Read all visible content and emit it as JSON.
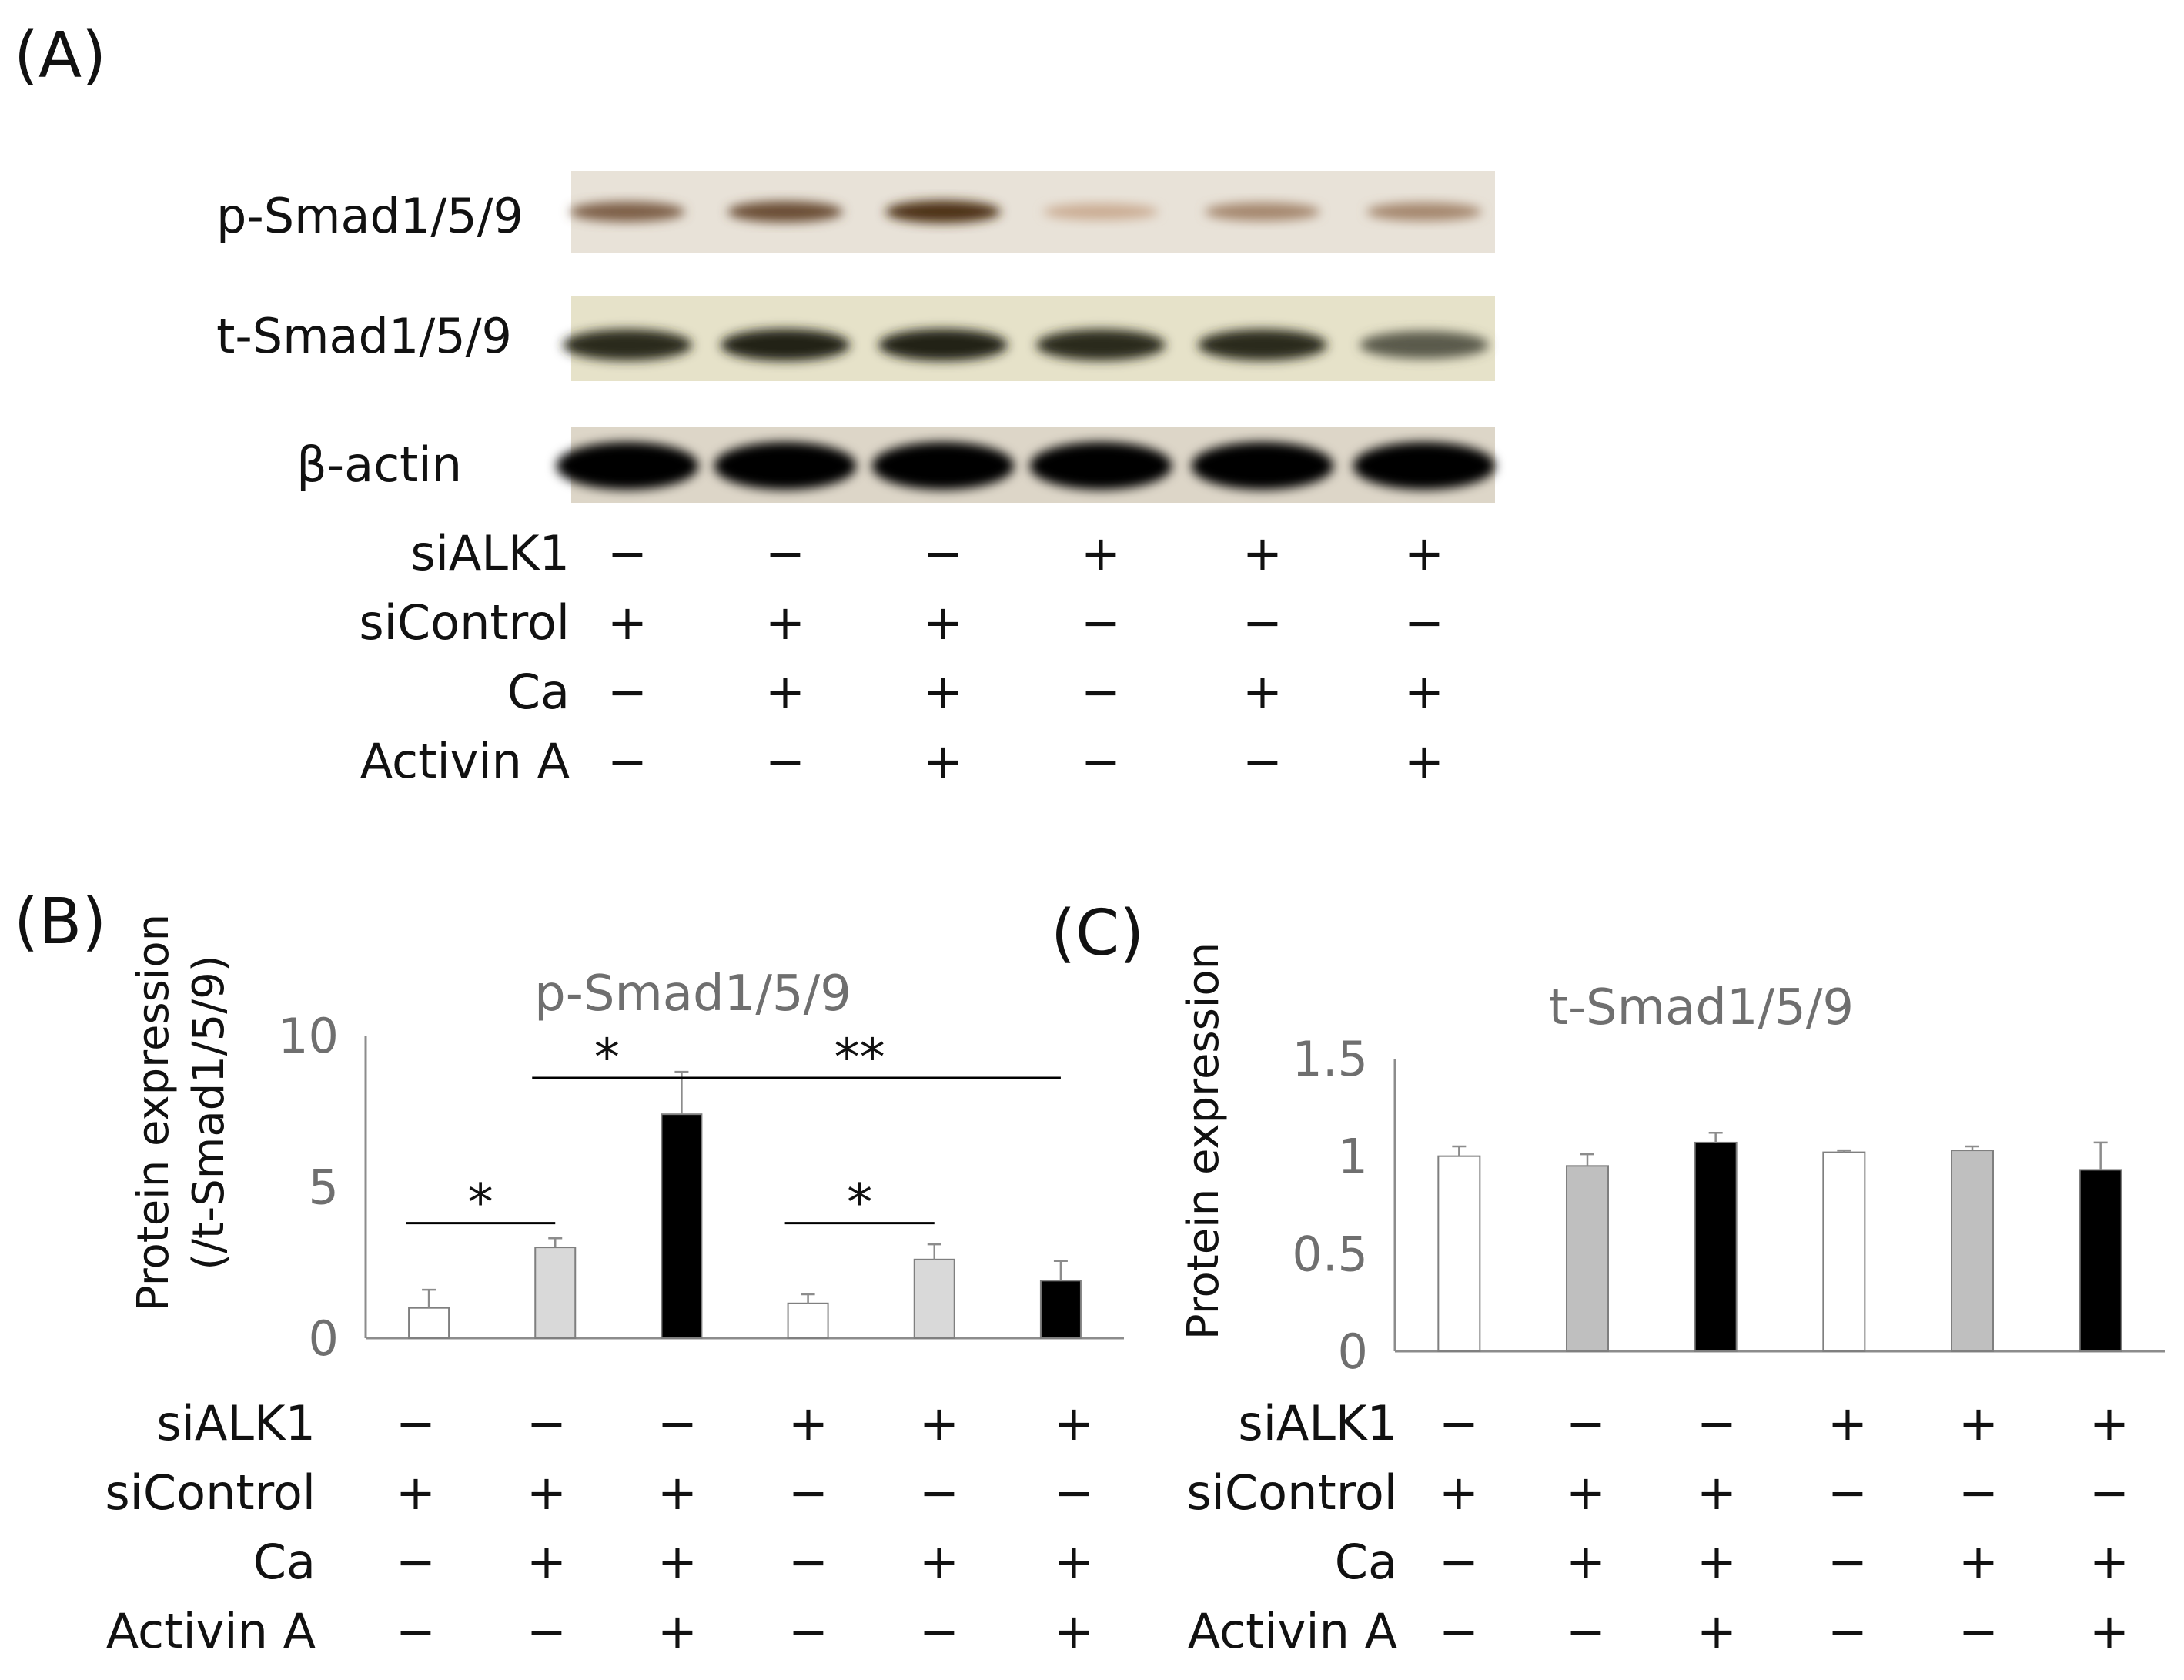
{
  "panels": {
    "a": "(A)",
    "b": "(B)",
    "c": "(C)"
  },
  "conditions": {
    "labels": [
      "siALK1",
      "siControl",
      "Ca",
      "Activin A"
    ],
    "signs": [
      [
        "−",
        "−",
        "−",
        "+",
        "+",
        "+"
      ],
      [
        "+",
        "+",
        "+",
        "−",
        "−",
        "−"
      ],
      [
        "−",
        "+",
        "+",
        "−",
        "+",
        "+"
      ],
      [
        "−",
        "−",
        "+",
        "−",
        "−",
        "+"
      ]
    ]
  },
  "blot": {
    "rows": [
      {
        "label": "p-Smad1/5/9",
        "intensity": [
          0.55,
          0.65,
          0.8,
          0.15,
          0.35,
          0.35
        ]
      },
      {
        "label": "t-Smad1/5/9",
        "intensity": [
          0.8,
          0.85,
          0.85,
          0.8,
          0.8,
          0.55
        ]
      },
      {
        "label": "β-actin",
        "intensity": [
          1,
          1,
          1,
          1,
          1,
          1
        ]
      }
    ]
  },
  "colors": {
    "white": "#ffffff",
    "light_gray": "#d9d9d9",
    "gray": "#bfbfbf",
    "black": "#000000",
    "axis": "#8c8c8c",
    "tick": "#6f6f6f"
  },
  "chart_data": [
    {
      "type": "bar",
      "title": "p-Smad1/5/9",
      "ylabel_lines": [
        "Protein expression",
        "(/t-Smad1/5/9)"
      ],
      "ylim": [
        0,
        10
      ],
      "yticks": [
        "0",
        "5",
        "10"
      ],
      "values": [
        1.0,
        3.0,
        7.4,
        1.15,
        2.6,
        1.9
      ],
      "errors": [
        0.6,
        0.3,
        1.4,
        0.3,
        0.5,
        0.65
      ],
      "bar_colors": [
        "#ffffff",
        "#d9d9d9",
        "#000000",
        "#ffffff",
        "#d9d9d9",
        "#000000"
      ],
      "significance": [
        {
          "from": 0,
          "to": 1,
          "y": 3.8,
          "label": "*"
        },
        {
          "from": 1,
          "to": 2,
          "y": 8.6,
          "label": "*"
        },
        {
          "from": 2,
          "to": 5,
          "y": 8.6,
          "label": "**"
        },
        {
          "from": 3,
          "to": 4,
          "y": 3.8,
          "label": "*"
        }
      ]
    },
    {
      "type": "bar",
      "title": "t-Smad1/5/9",
      "ylabel_lines": [
        "Protein expression"
      ],
      "ylim": [
        0,
        1.5
      ],
      "yticks": [
        "0",
        "0.5",
        "1",
        "1.5"
      ],
      "values": [
        1.0,
        0.95,
        1.07,
        1.02,
        1.03,
        0.93
      ],
      "errors": [
        0.05,
        0.06,
        0.05,
        0.01,
        0.02,
        0.14
      ],
      "bar_colors": [
        "#ffffff",
        "#bfbfbf",
        "#000000",
        "#ffffff",
        "#bfbfbf",
        "#000000"
      ]
    }
  ]
}
